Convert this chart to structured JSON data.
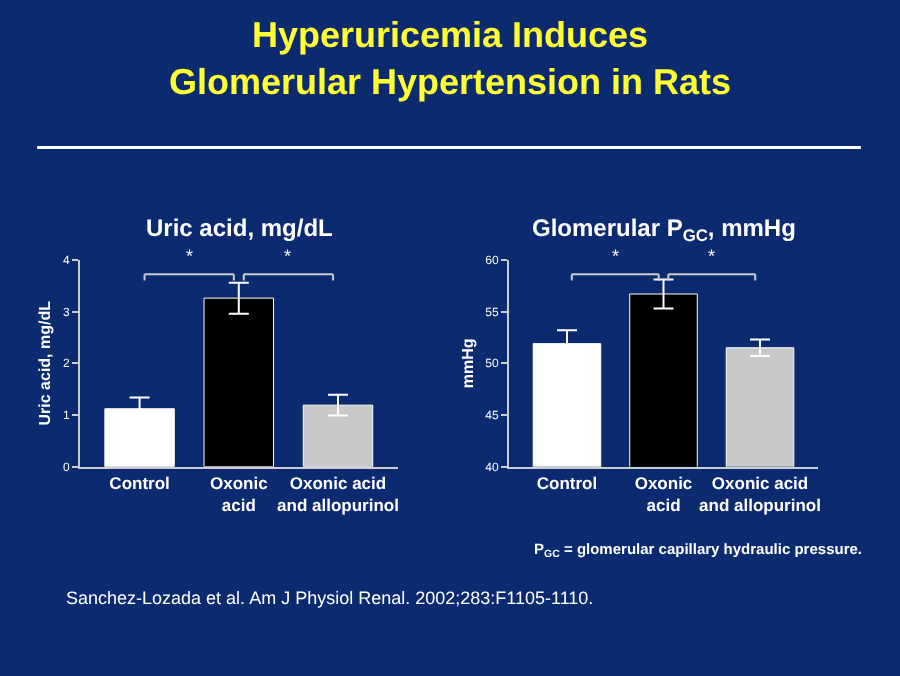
{
  "chart_data": [
    {
      "type": "other",
      "title": "Hyperuricemia Induces Glomerular Hypertension in Rats",
      "annotations": [
        "P$_{GC}$ = glomerular capillary hydraulic pressure.",
        "Sanchez-Lozada et al. Am J Physiol Renal. 2002;283:F1105-1110."
      ]
    },
    {
      "type": "bar",
      "title": "Uric acid, mg/dL",
      "ylabel": "Uric acid, mg/dL",
      "categories": [
        "Control",
        "Oxonic acid",
        "Oxonic acid and allopurinol"
      ],
      "values": [
        1.12,
        3.26,
        1.19
      ],
      "errors": [
        0.22,
        0.3,
        0.2
      ],
      "colors": [
        "#ffffff",
        "#000000",
        "#c8c8c8"
      ],
      "ylim": [
        0,
        4
      ],
      "yticks": [
        0,
        1,
        2,
        3,
        4
      ],
      "annotations": [
        "*",
        "*"
      ],
      "grid": false
    },
    {
      "type": "bar",
      "title": "Glomerular P$_{GC}$, mmHg",
      "ylabel": "mmHg",
      "categories": [
        "Control",
        "Oxonic acid",
        "Oxonic acid and allopurinol"
      ],
      "values": [
        51.9,
        56.7,
        51.5
      ],
      "errors": [
        1.3,
        1.4,
        0.8
      ],
      "colors": [
        "#ffffff",
        "#000000",
        "#c8c8c8"
      ],
      "ylim": [
        40,
        60
      ],
      "yticks": [
        40,
        45,
        50,
        55,
        60
      ],
      "annotations": [
        "*",
        "*"
      ],
      "grid": false
    }
  ]
}
